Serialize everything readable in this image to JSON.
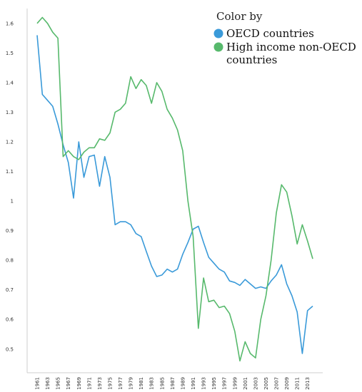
{
  "chart_data": {
    "type": "line",
    "title": "",
    "xlabel": "",
    "ylabel": "",
    "xlim": [
      1961,
      2014
    ],
    "ylim": [
      0.42,
      1.65
    ],
    "y_ticks": [
      0.5,
      0.6,
      0.7,
      0.8,
      0.9,
      1,
      1.1,
      1.2,
      1.3,
      1.4,
      1.5,
      1.6
    ],
    "x_ticks": [
      1961,
      1963,
      1965,
      1967,
      1969,
      1971,
      1973,
      1975,
      1977,
      1979,
      1981,
      1983,
      1985,
      1987,
      1989,
      1991,
      1993,
      1995,
      1997,
      1999,
      2001,
      2003,
      2005,
      2007,
      2009,
      2011,
      2013
    ],
    "grid": false,
    "legend": {
      "title": "Color by",
      "position": "top-right"
    },
    "x": [
      1961,
      1962,
      1963,
      1964,
      1965,
      1966,
      1967,
      1968,
      1969,
      1970,
      1971,
      1972,
      1973,
      1974,
      1975,
      1976,
      1977,
      1978,
      1979,
      1980,
      1981,
      1982,
      1983,
      1984,
      1985,
      1986,
      1987,
      1988,
      1989,
      1990,
      1991,
      1992,
      1993,
      1994,
      1995,
      1996,
      1997,
      1998,
      1999,
      2000,
      2001,
      2002,
      2003,
      2004,
      2005,
      2006,
      2007,
      2008,
      2009,
      2010,
      2011,
      2012,
      2013,
      2014
    ],
    "series": [
      {
        "name": "OECD countries",
        "color": "#3a9ad9",
        "values": [
          1.56,
          1.36,
          1.34,
          1.32,
          1.26,
          1.19,
          1.13,
          1.01,
          1.2,
          1.08,
          1.15,
          1.155,
          1.05,
          1.15,
          1.08,
          0.92,
          0.93,
          0.93,
          0.92,
          0.89,
          0.88,
          0.83,
          0.78,
          0.745,
          0.75,
          0.77,
          0.76,
          0.77,
          0.82,
          0.86,
          0.905,
          0.915,
          0.86,
          0.81,
          0.79,
          0.77,
          0.76,
          0.73,
          0.725,
          0.715,
          0.735,
          0.72,
          0.705,
          0.71,
          0.705,
          0.73,
          0.75,
          0.785,
          0.72,
          0.68,
          0.625,
          0.485,
          0.63,
          0.645
        ]
      },
      {
        "name": "High income non-OECD countries",
        "color": "#57b96c",
        "values": [
          1.6,
          1.62,
          1.6,
          1.57,
          1.55,
          1.15,
          1.17,
          1.15,
          1.14,
          1.165,
          1.18,
          1.18,
          1.21,
          1.205,
          1.23,
          1.3,
          1.31,
          1.33,
          1.42,
          1.38,
          1.41,
          1.39,
          1.33,
          1.4,
          1.37,
          1.31,
          1.28,
          1.24,
          1.17,
          1.0,
          0.88,
          0.57,
          0.74,
          0.66,
          0.665,
          0.64,
          0.645,
          0.62,
          0.56,
          0.46,
          0.525,
          0.485,
          0.47,
          0.6,
          0.68,
          0.8,
          0.96,
          1.055,
          1.03,
          0.95,
          0.855,
          0.92,
          0.865,
          0.805
        ]
      }
    ]
  }
}
